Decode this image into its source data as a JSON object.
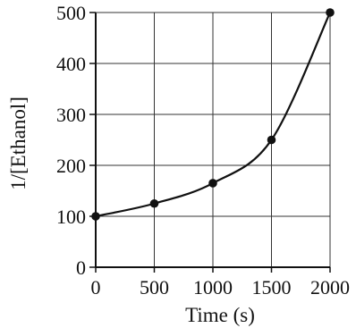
{
  "chart_data": {
    "type": "line",
    "title": "",
    "xlabel": "Time (s)",
    "ylabel": "1/[Ethanol]",
    "xlim": [
      0,
      2000
    ],
    "ylim": [
      0,
      500
    ],
    "x_ticks": [
      0,
      500,
      1000,
      1500,
      2000
    ],
    "y_ticks": [
      0,
      100,
      200,
      300,
      400,
      500
    ],
    "x_tick_labels": [
      "0",
      "500",
      "1000",
      "1500",
      "2000"
    ],
    "y_tick_labels": [
      "0",
      "100",
      "200",
      "300",
      "400",
      "500"
    ],
    "grid": true,
    "series": [
      {
        "x": [
          0,
          500,
          1000,
          1500,
          2000
        ],
        "y": [
          100,
          125,
          165,
          250,
          500
        ]
      }
    ],
    "line_color": "#111111",
    "marker_color": "#111111"
  }
}
